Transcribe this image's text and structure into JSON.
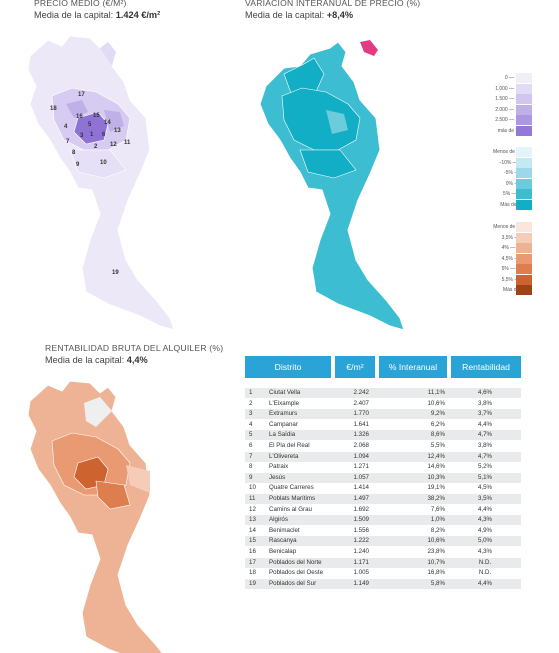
{
  "panels": {
    "price": {
      "title": "PRECIO MEDIO (€/m²)",
      "subtitle_prefix": "Media de la capital: ",
      "subtitle_value": "1.424 €/m²"
    },
    "variation": {
      "title": "VARIACIÓN INTERANUAL DE PRECIO (%)",
      "subtitle_prefix": "Media de la capital: ",
      "subtitle_value": "+8,4%"
    },
    "rent": {
      "title": "RENTABILIDAD BRUTA DEL ALQUILER (%)",
      "subtitle_prefix": "Media de la capital: ",
      "subtitle_value": "4,4%"
    }
  },
  "legends": {
    "price": [
      {
        "label": "0 — 1.000",
        "color": "#f1eefa"
      },
      {
        "label": "1.000 — 1.500",
        "color": "#e2dbf5"
      },
      {
        "label": "1.500 — 2.000",
        "color": "#d1c6ef"
      },
      {
        "label": "2.000 — 2.500",
        "color": "#bfb0e8"
      },
      {
        "label": "2.500 — 3.000",
        "color": "#ab98e1"
      },
      {
        "label": "más de 3.000",
        "color": "#9478d8"
      }
    ],
    "variation": [
      {
        "label": "Menos de -10%",
        "color": "#e4f5f9"
      },
      {
        "label": "-10% — -5%",
        "color": "#c3e9f1"
      },
      {
        "label": "-5% — 0%",
        "color": "#9bd9e8"
      },
      {
        "label": "0% — 5%",
        "color": "#6ccbdc"
      },
      {
        "label": "5% — 10%",
        "color": "#3dbdd1"
      },
      {
        "label": "Más de 10%",
        "color": "#12aec6"
      }
    ],
    "rent": [
      {
        "label": "Menos de 3,5%",
        "color": "#fae6dc"
      },
      {
        "label": "3,5% — 4%",
        "color": "#f4ccb8"
      },
      {
        "label": "4% — 4,5%",
        "color": "#eeb394"
      },
      {
        "label": "4,5% — 5%",
        "color": "#e99a72"
      },
      {
        "label": "5% — 5,5%",
        "color": "#de7e4e"
      },
      {
        "label": "5,5% — 6%",
        "color": "#cd6430"
      },
      {
        "label": "Más de 6%",
        "color": "#9c4416"
      }
    ]
  },
  "map_labels": [
    "17",
    "18",
    "16",
    "15",
    "4",
    "5",
    "14",
    "3",
    "1",
    "6",
    "13",
    "7",
    "2",
    "12",
    "11",
    "8",
    "10",
    "9",
    "19"
  ],
  "table": {
    "headers": {
      "distrito": "Distrito",
      "precio": "€/m²",
      "interanual": "% Interanual",
      "rentabilidad": "Rentabilidad"
    },
    "rows": [
      {
        "n": "1",
        "name": "Ciutat Vella",
        "price": "2.242",
        "ia": "11,1%",
        "rent": "4,6%"
      },
      {
        "n": "2",
        "name": "L'Eixample",
        "price": "2.407",
        "ia": "10,6%",
        "rent": "3,8%"
      },
      {
        "n": "3",
        "name": "Extramurs",
        "price": "1.770",
        "ia": "9,2%",
        "rent": "3,7%"
      },
      {
        "n": "4",
        "name": "Campanar",
        "price": "1.641",
        "ia": "6,2%",
        "rent": "4,4%"
      },
      {
        "n": "5",
        "name": "La Saïdia",
        "price": "1.326",
        "ia": "8,6%",
        "rent": "4,7%"
      },
      {
        "n": "6",
        "name": "El Pla del Real",
        "price": "2.068",
        "ia": "5,5%",
        "rent": "3,8%"
      },
      {
        "n": "7",
        "name": "L'Olivereta",
        "price": "1.094",
        "ia": "12,4%",
        "rent": "4,7%"
      },
      {
        "n": "8",
        "name": "Patraix",
        "price": "1.271",
        "ia": "14,6%",
        "rent": "5,2%"
      },
      {
        "n": "9",
        "name": "Jesús",
        "price": "1.057",
        "ia": "10,3%",
        "rent": "5,1%"
      },
      {
        "n": "10",
        "name": "Quatre Carreres",
        "price": "1.414",
        "ia": "19,1%",
        "rent": "4,5%"
      },
      {
        "n": "11",
        "name": "Poblats Marítims",
        "price": "1.497",
        "ia": "38,2%",
        "rent": "3,5%"
      },
      {
        "n": "12",
        "name": "Camins al Grau",
        "price": "1.692",
        "ia": "7,6%",
        "rent": "4,4%"
      },
      {
        "n": "13",
        "name": "Algirós",
        "price": "1.509",
        "ia": "1,0%",
        "rent": "4,3%"
      },
      {
        "n": "14",
        "name": "Benimaclet",
        "price": "1.556",
        "ia": "8,2%",
        "rent": "4,9%"
      },
      {
        "n": "15",
        "name": "Rascanya",
        "price": "1.222",
        "ia": "10,6%",
        "rent": "5,0%"
      },
      {
        "n": "16",
        "name": "Benicalap",
        "price": "1.240",
        "ia": "23,8%",
        "rent": "4,3%"
      },
      {
        "n": "17",
        "name": "Poblados del Norte",
        "price": "1.171",
        "ia": "10,7%",
        "rent": "N.D."
      },
      {
        "n": "18",
        "name": "Poblados del Oeste",
        "price": "1.005",
        "ia": "16,8%",
        "rent": "N.D."
      },
      {
        "n": "19",
        "name": "Poblados del Sur",
        "price": "1.149",
        "ia": "5,8%",
        "rent": "4,4%"
      }
    ]
  }
}
